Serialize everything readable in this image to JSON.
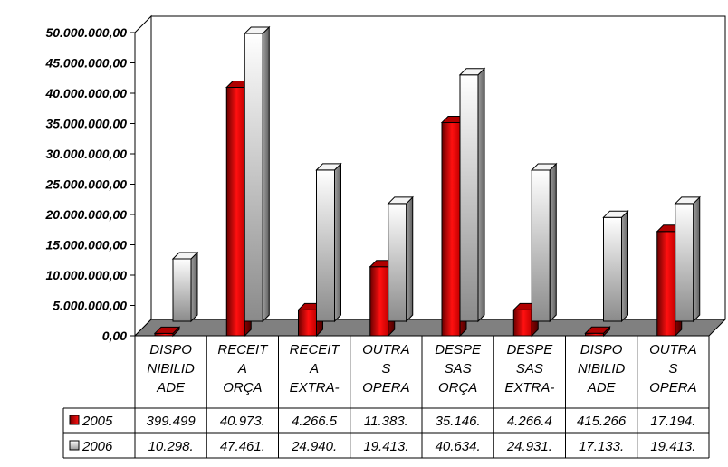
{
  "chart_data": {
    "type": "bar",
    "title": "",
    "xlabel": "",
    "ylabel": "",
    "ylim": [
      0,
      50000000
    ],
    "grid": false,
    "legend": "data-table-left",
    "y_tick_labels": [
      "0,00",
      "5.000.000,00",
      "10.000.000,00",
      "15.000.000,00",
      "20.000.000,00",
      "25.000.000,00",
      "30.000.000,00",
      "35.000.000,00",
      "40.000.000,00",
      "45.000.000,00",
      "50.000.000,00"
    ],
    "categories": [
      [
        "DISPO",
        "NIBILID",
        "ADE"
      ],
      [
        "RECEIT",
        "A",
        "ORÇA"
      ],
      [
        "RECEIT",
        "A",
        "EXTRA-"
      ],
      [
        "OUTRA",
        "S",
        "OPERA"
      ],
      [
        "DESPE",
        "SAS",
        "ORÇA"
      ],
      [
        "DESPE",
        "SAS",
        "EXTRA-"
      ],
      [
        "DISPO",
        "NIBILID",
        "ADE"
      ],
      [
        "OUTRA",
        "S",
        "OPERA"
      ]
    ],
    "series": [
      {
        "name": "2005",
        "color": "#e00000",
        "values": [
          399499,
          40973000,
          4266500,
          11383000,
          35146000,
          4266400,
          415266,
          17194000
        ],
        "table_labels": [
          "399.499",
          "40.973.",
          "4.266.5",
          "11.383.",
          "35.146.",
          "4.266.4",
          "415.266",
          "17.194."
        ]
      },
      {
        "name": "2006",
        "color": "#d8d8d8",
        "values": [
          10298000,
          47461000,
          24940000,
          19413000,
          40634000,
          24931000,
          17133000,
          19413000
        ],
        "table_labels": [
          "10.298.",
          "47.461.",
          "24.940.",
          "19.413.",
          "40.634.",
          "24.931.",
          "17.133.",
          "19.413."
        ]
      }
    ]
  }
}
